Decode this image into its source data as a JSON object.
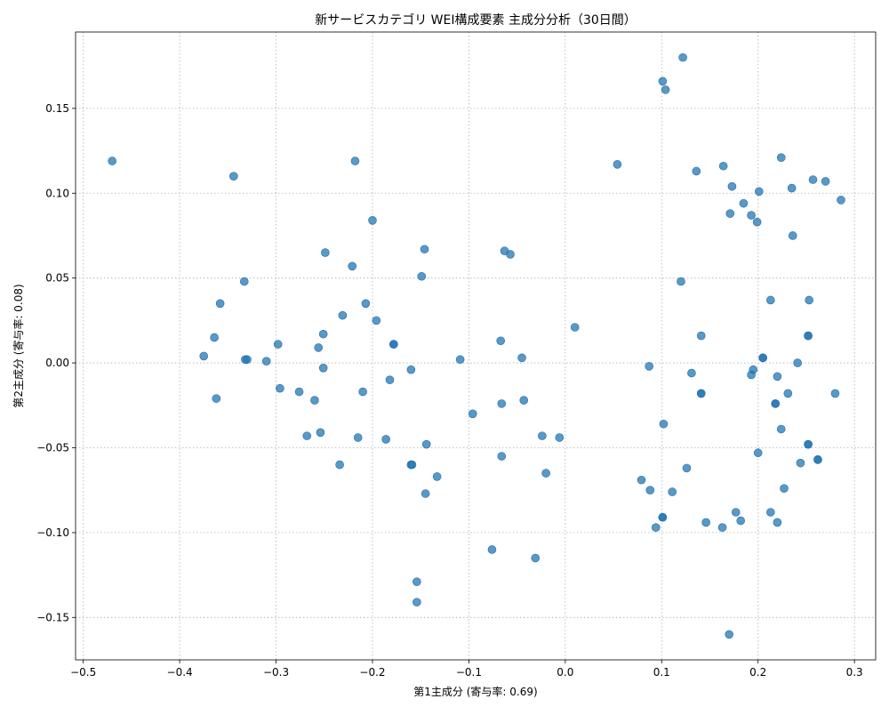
{
  "chart_data": {
    "type": "scatter",
    "title": "新サービスカテゴリ WEI構成要素 主成分分析（30日間）",
    "xlabel": "第1主成分 (寄与率: 0.69)",
    "ylabel": "第2主成分 (寄与率: 0.08)",
    "xlim": [
      -0.508,
      0.322
    ],
    "ylim": [
      -0.175,
      0.195
    ],
    "xticks": [
      -0.5,
      -0.4,
      -0.3,
      -0.2,
      -0.1,
      0.0,
      0.1,
      0.2,
      0.3
    ],
    "xtick_labels": [
      "−0.5",
      "−0.4",
      "−0.3",
      "−0.2",
      "−0.1",
      "0.0",
      "0.1",
      "0.2",
      "0.3"
    ],
    "yticks": [
      -0.15,
      -0.1,
      -0.05,
      0.0,
      0.05,
      0.1,
      0.15
    ],
    "ytick_labels": [
      "−0.15",
      "−0.10",
      "−0.05",
      "0.00",
      "0.05",
      "0.10",
      "0.15"
    ],
    "grid": true,
    "marker_color": "#1f77b4",
    "points": [
      [
        -0.47,
        0.119
      ],
      [
        -0.344,
        0.11
      ],
      [
        -0.218,
        0.119
      ],
      [
        -0.2,
        0.084
      ],
      [
        -0.146,
        0.067
      ],
      [
        -0.249,
        0.065
      ],
      [
        -0.221,
        0.057
      ],
      [
        -0.149,
        0.051
      ],
      [
        -0.333,
        0.048
      ],
      [
        -0.358,
        0.035
      ],
      [
        -0.207,
        0.035
      ],
      [
        -0.231,
        0.028
      ],
      [
        -0.196,
        0.025
      ],
      [
        -0.251,
        0.017
      ],
      [
        -0.364,
        0.015
      ],
      [
        -0.178,
        0.011
      ],
      [
        -0.178,
        0.011
      ],
      [
        -0.298,
        0.011
      ],
      [
        -0.256,
        0.009
      ],
      [
        -0.375,
        0.004
      ],
      [
        -0.332,
        0.002
      ],
      [
        -0.33,
        0.002
      ],
      [
        -0.31,
        0.001
      ],
      [
        -0.251,
        -0.003
      ],
      [
        -0.16,
        -0.004
      ],
      [
        -0.109,
        0.002
      ],
      [
        -0.182,
        -0.01
      ],
      [
        -0.296,
        -0.015
      ],
      [
        -0.276,
        -0.017
      ],
      [
        -0.21,
        -0.017
      ],
      [
        -0.362,
        -0.021
      ],
      [
        -0.26,
        -0.022
      ],
      [
        -0.268,
        -0.043
      ],
      [
        -0.254,
        -0.041
      ],
      [
        -0.215,
        -0.044
      ],
      [
        -0.186,
        -0.045
      ],
      [
        -0.144,
        -0.048
      ],
      [
        -0.234,
        -0.06
      ],
      [
        -0.16,
        -0.06
      ],
      [
        -0.159,
        -0.06
      ],
      [
        -0.133,
        -0.067
      ],
      [
        -0.145,
        -0.077
      ],
      [
        -0.096,
        -0.03
      ],
      [
        -0.154,
        -0.129
      ],
      [
        -0.154,
        -0.141
      ],
      [
        -0.076,
        -0.11
      ],
      [
        -0.031,
        -0.115
      ],
      [
        -0.063,
        0.066
      ],
      [
        -0.057,
        0.064
      ],
      [
        -0.067,
        0.013
      ],
      [
        -0.045,
        0.003
      ],
      [
        -0.066,
        -0.024
      ],
      [
        -0.043,
        -0.022
      ],
      [
        -0.024,
        -0.043
      ],
      [
        -0.006,
        -0.044
      ],
      [
        -0.066,
        -0.055
      ],
      [
        -0.02,
        -0.065
      ],
      [
        0.01,
        0.021
      ],
      [
        0.054,
        0.117
      ],
      [
        0.101,
        0.166
      ],
      [
        0.104,
        0.161
      ],
      [
        0.122,
        0.18
      ],
      [
        0.136,
        0.113
      ],
      [
        0.164,
        0.116
      ],
      [
        0.173,
        0.104
      ],
      [
        0.171,
        0.088
      ],
      [
        0.185,
        0.094
      ],
      [
        0.193,
        0.087
      ],
      [
        0.199,
        0.083
      ],
      [
        0.201,
        0.101
      ],
      [
        0.224,
        0.121
      ],
      [
        0.235,
        0.103
      ],
      [
        0.257,
        0.108
      ],
      [
        0.27,
        0.107
      ],
      [
        0.286,
        0.096
      ],
      [
        0.236,
        0.075
      ],
      [
        0.12,
        0.048
      ],
      [
        0.213,
        0.037
      ],
      [
        0.253,
        0.037
      ],
      [
        0.141,
        0.016
      ],
      [
        0.252,
        0.016
      ],
      [
        0.252,
        0.016
      ],
      [
        0.205,
        0.003
      ],
      [
        0.205,
        0.003
      ],
      [
        0.241,
        0.0
      ],
      [
        0.087,
        -0.002
      ],
      [
        0.131,
        -0.006
      ],
      [
        0.195,
        -0.004
      ],
      [
        0.193,
        -0.007
      ],
      [
        0.22,
        -0.008
      ],
      [
        0.141,
        -0.018
      ],
      [
        0.141,
        -0.018
      ],
      [
        0.231,
        -0.018
      ],
      [
        0.28,
        -0.018
      ],
      [
        0.218,
        -0.024
      ],
      [
        0.218,
        -0.024
      ],
      [
        0.102,
        -0.036
      ],
      [
        0.224,
        -0.039
      ],
      [
        0.252,
        -0.048
      ],
      [
        0.252,
        -0.048
      ],
      [
        0.2,
        -0.053
      ],
      [
        0.244,
        -0.059
      ],
      [
        0.262,
        -0.057
      ],
      [
        0.262,
        -0.057
      ],
      [
        0.126,
        -0.062
      ],
      [
        0.079,
        -0.069
      ],
      [
        0.088,
        -0.075
      ],
      [
        0.111,
        -0.076
      ],
      [
        0.227,
        -0.074
      ],
      [
        0.101,
        -0.091
      ],
      [
        0.101,
        -0.091
      ],
      [
        0.094,
        -0.097
      ],
      [
        0.146,
        -0.094
      ],
      [
        0.163,
        -0.097
      ],
      [
        0.177,
        -0.088
      ],
      [
        0.182,
        -0.093
      ],
      [
        0.213,
        -0.088
      ],
      [
        0.22,
        -0.094
      ],
      [
        0.17,
        -0.16
      ]
    ]
  }
}
